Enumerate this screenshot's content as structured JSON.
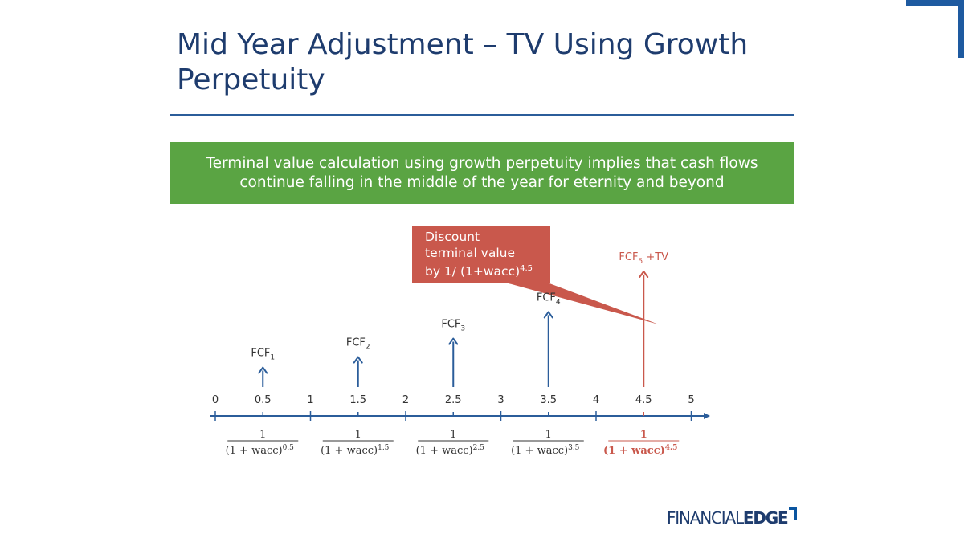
{
  "title": "Mid Year Adjustment – TV Using Growth Perpetuity",
  "banner": "Terminal value calculation using growth perpetuity implies that cash flows continue falling in the middle of the year for eternity and beyond",
  "callout": {
    "line1": "Discount",
    "line2": "terminal value",
    "line3_prefix": "by  1/ (1+wacc)",
    "line3_exp": "4.5"
  },
  "colors": {
    "navy": "#1e3c6e",
    "blue": "#2b5d9a",
    "green": "#5aa443",
    "red": "#c9584c",
    "logo_accent": "#0a55a0"
  },
  "logo": {
    "light": "FINANCIAL",
    "bold": "EDGE"
  },
  "timeline": {
    "year_labels": [
      "0",
      "1",
      "2",
      "3",
      "4",
      "5"
    ],
    "mid_labels": [
      "0.5",
      "1.5",
      "2.5",
      "3.5",
      "4.5"
    ],
    "cash_flows": [
      {
        "base": "FCF",
        "sub": "1",
        "suffix": "",
        "relative_height": 0.17,
        "highlight": false
      },
      {
        "base": "FCF",
        "sub": "2",
        "suffix": "",
        "relative_height": 0.26,
        "highlight": false
      },
      {
        "base": "FCF",
        "sub": "3",
        "suffix": "",
        "relative_height": 0.42,
        "highlight": false
      },
      {
        "base": "FCF",
        "sub": "4",
        "suffix": "",
        "relative_height": 0.65,
        "highlight": false
      },
      {
        "base": "FCF",
        "sub": "5",
        "suffix": " +TV",
        "relative_height": 1.0,
        "highlight": true
      }
    ],
    "discount_factors": [
      {
        "numerator": "1",
        "denominator": "(1 + wacc)",
        "exponent": "0.5",
        "highlight": false
      },
      {
        "numerator": "1",
        "denominator": "(1 + wacc)",
        "exponent": "1.5",
        "highlight": false
      },
      {
        "numerator": "1",
        "denominator": "(1 + wacc)",
        "exponent": "2.5",
        "highlight": false
      },
      {
        "numerator": "1",
        "denominator": "(1 + wacc)",
        "exponent": "3.5",
        "highlight": false
      },
      {
        "numerator": "1",
        "denominator": "(1 + wacc)",
        "exponent": "4.5",
        "highlight": true
      }
    ]
  }
}
